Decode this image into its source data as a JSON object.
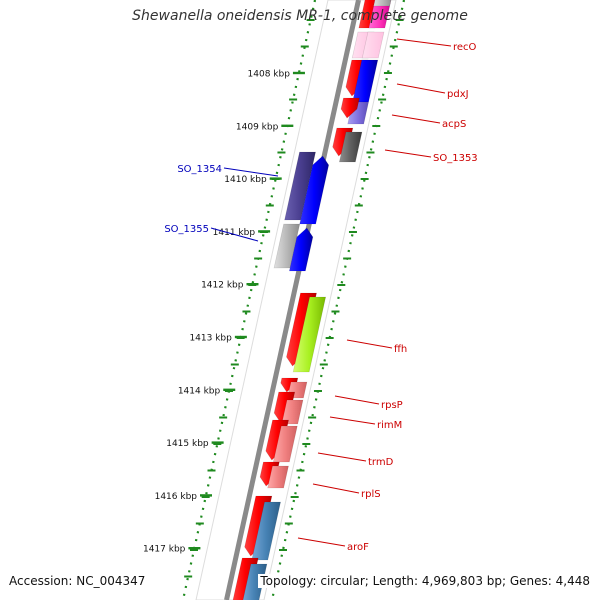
{
  "title": "Shewanella oneidensis MR-1, complete genome",
  "footer": {
    "accession": "Accession: NC_004347",
    "topology": "Topology: circular; Length: 4,969,803 bp; Genes: 4,448"
  },
  "colors": {
    "ring": "#8a8a8a",
    "tick": "#1f8a1f",
    "label_red": "#cc0000",
    "label_blue": "#0000bb"
  },
  "scale_ticks": [
    {
      "label": "1408 kbp",
      "kbp": 1408
    },
    {
      "label": "1409 kbp",
      "kbp": 1409
    },
    {
      "label": "1410 kbp",
      "kbp": 1410
    },
    {
      "label": "1411 kbp",
      "kbp": 1411
    },
    {
      "label": "1412 kbp",
      "kbp": 1412
    },
    {
      "label": "1413 kbp",
      "kbp": 1413
    },
    {
      "label": "1414 kbp",
      "kbp": 1414
    },
    {
      "label": "1415 kbp",
      "kbp": 1415
    },
    {
      "label": "1416 kbp",
      "kbp": 1416
    },
    {
      "label": "1417 kbp",
      "kbp": 1417
    }
  ],
  "gene_labels": [
    {
      "name": "recO",
      "side": "right"
    },
    {
      "name": "pdxJ",
      "side": "right"
    },
    {
      "name": "acpS",
      "side": "right"
    },
    {
      "name": "SO_1353",
      "side": "right"
    },
    {
      "name": "SO_1354",
      "side": "left"
    },
    {
      "name": "SO_1355",
      "side": "left"
    },
    {
      "name": "ffh",
      "side": "right"
    },
    {
      "name": "rpsP",
      "side": "right"
    },
    {
      "name": "rimM",
      "side": "right"
    },
    {
      "name": "trmD",
      "side": "right"
    },
    {
      "name": "rplS",
      "side": "right"
    },
    {
      "name": "aroF",
      "side": "right"
    }
  ]
}
